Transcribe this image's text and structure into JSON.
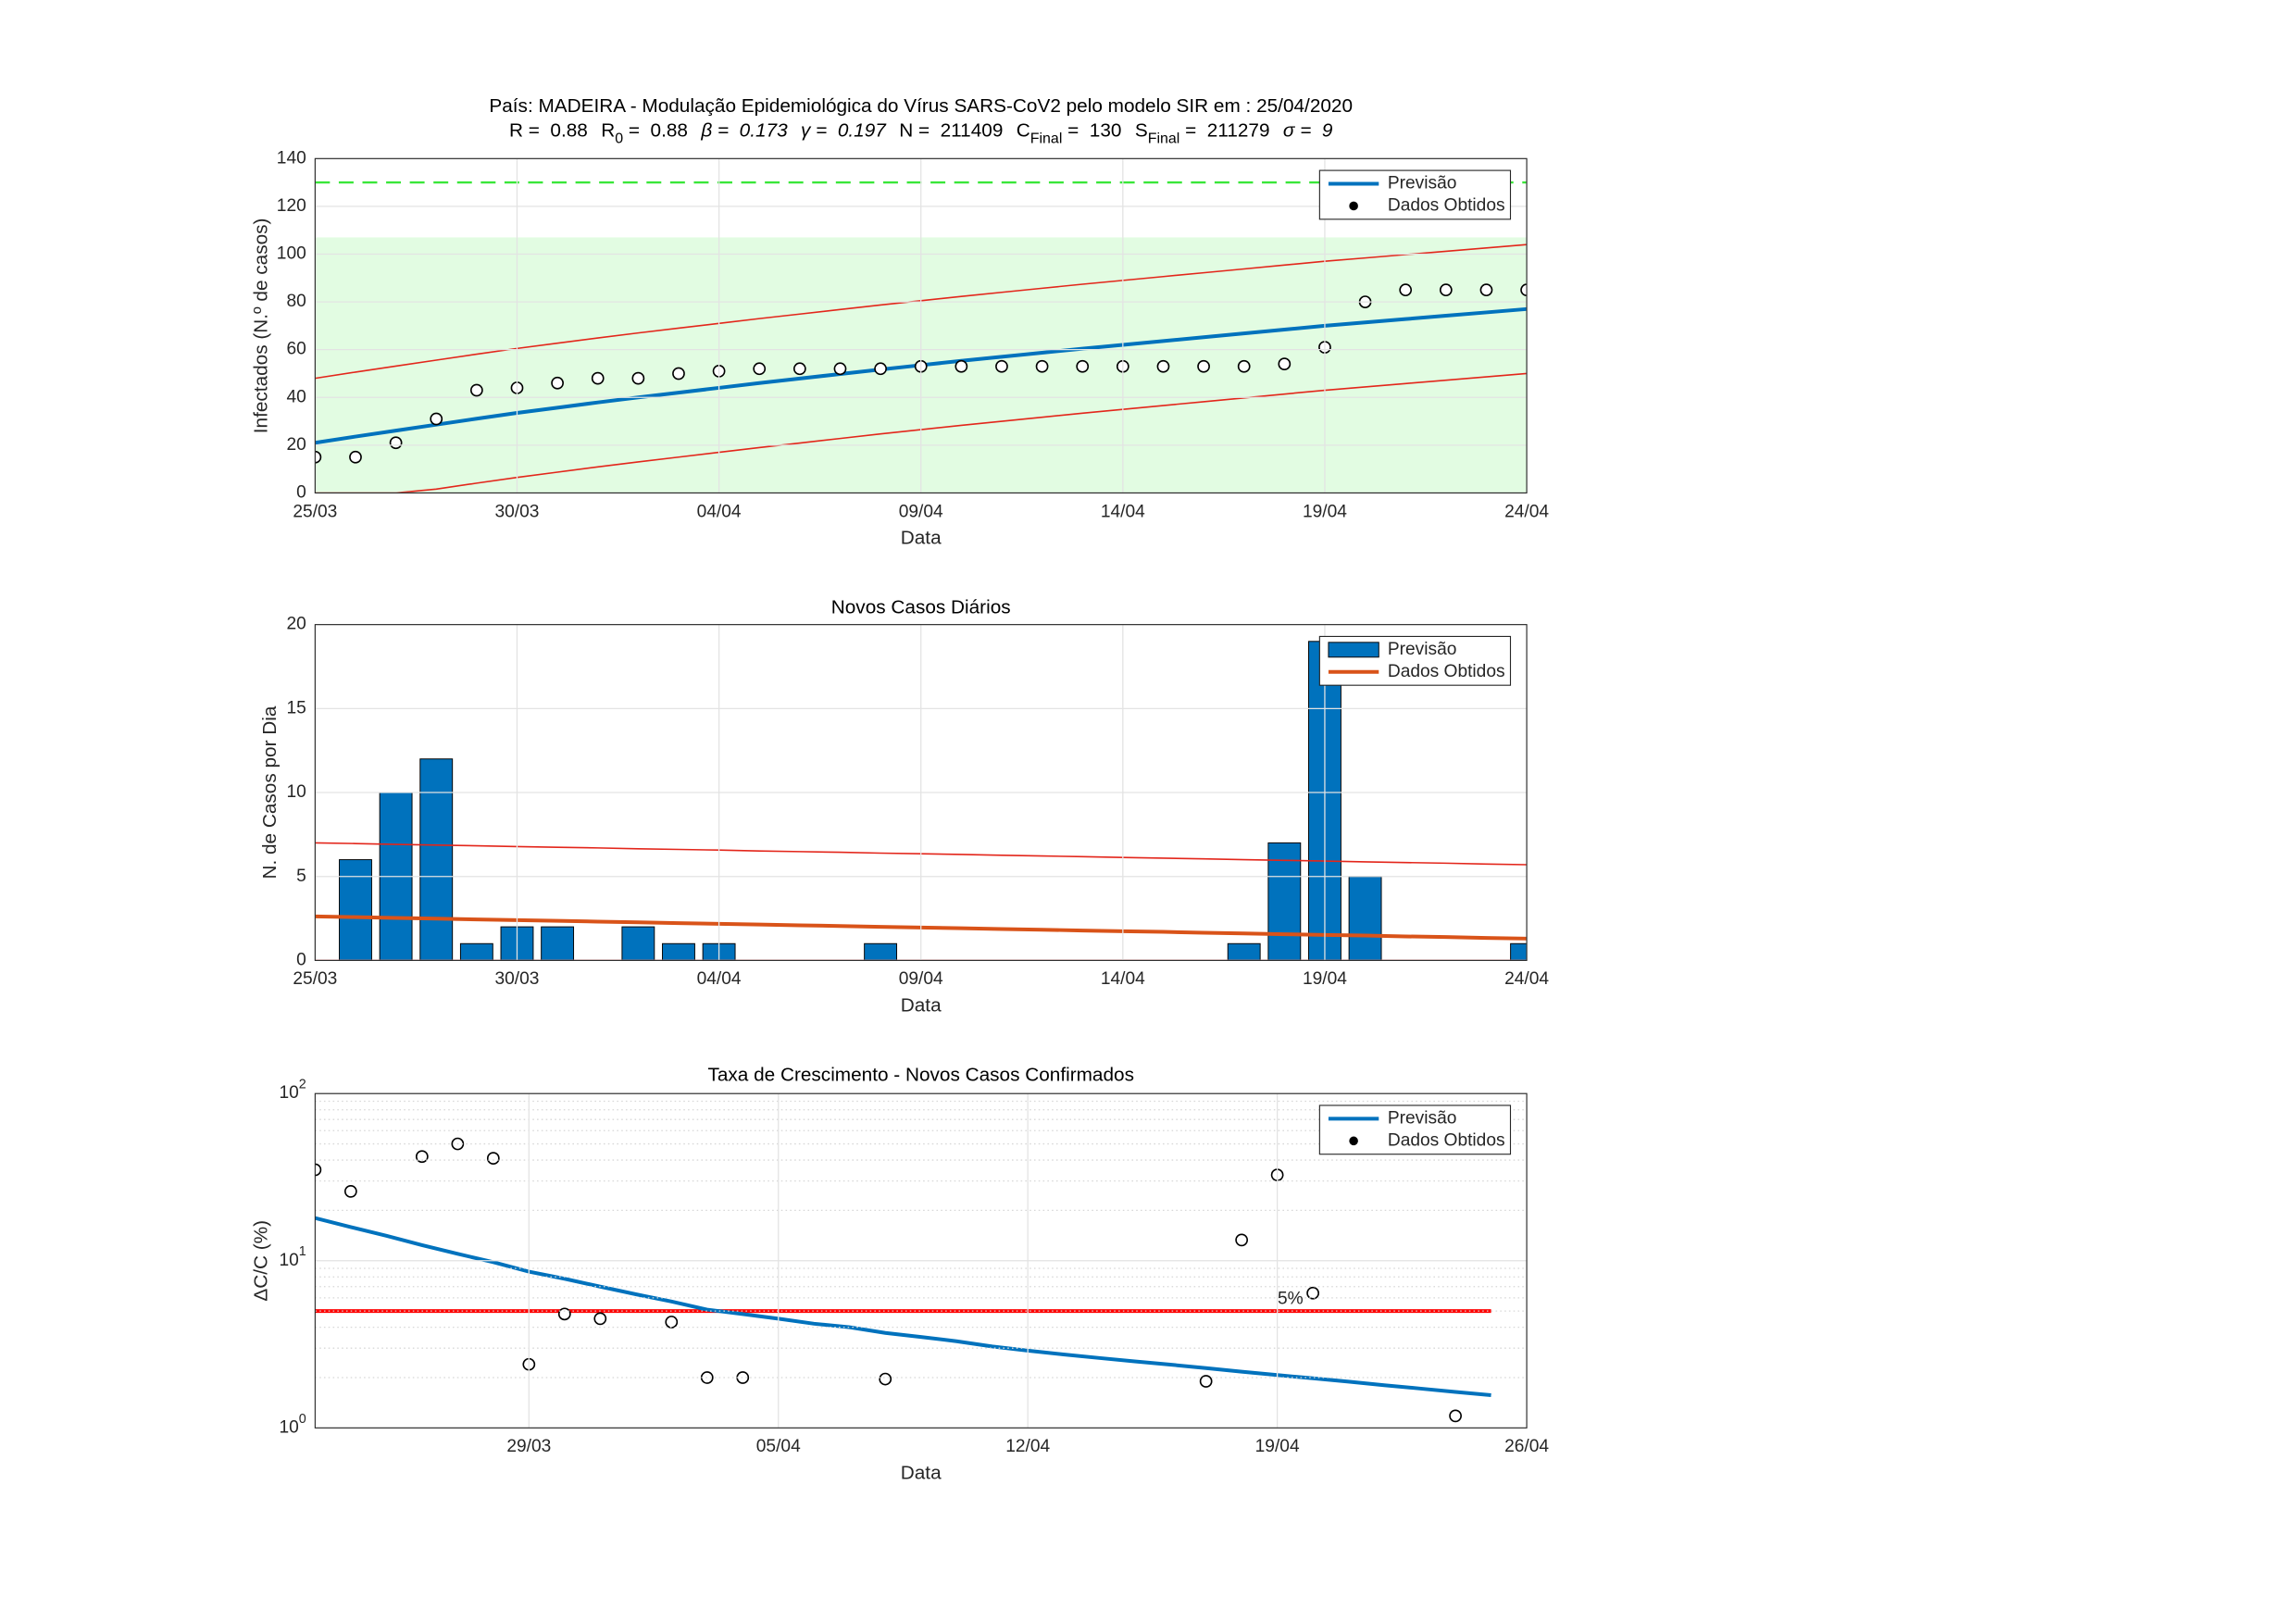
{
  "chart_data": [
    {
      "type": "line",
      "title": "País: MADEIRA - Modulação Epidemiológica do Vírus SARS-CoV2 pelo modelo SIR em : 25/04/2020",
      "subtitle": [
        {
          "text": "R =  0.88"
        },
        {
          "text": "R",
          "sub": "0",
          "rest": " =  0.88"
        },
        {
          "text": "β =  0.173"
        },
        {
          "text": "γ =  0.197"
        },
        {
          "text": "N =  211409"
        },
        {
          "text": "C",
          "sub": "Final",
          "rest": " =  130"
        },
        {
          "text": "S",
          "sub": "Final",
          "rest": " =  211279"
        },
        {
          "text": "σ =  9"
        }
      ],
      "x_label": "Data",
      "y_label": "Infectados (N.º de casos)",
      "x": [
        "25/03",
        "26/03",
        "27/03",
        "28/03",
        "29/03",
        "30/03",
        "31/03",
        "01/04",
        "02/04",
        "03/04",
        "04/04",
        "05/04",
        "06/04",
        "07/04",
        "08/04",
        "09/04",
        "10/04",
        "11/04",
        "12/04",
        "13/04",
        "14/04",
        "15/04",
        "16/04",
        "17/04",
        "18/04",
        "19/04",
        "20/04",
        "21/04",
        "22/04",
        "23/04",
        "24/04"
      ],
      "xticks": [
        "25/03",
        "30/03",
        "04/04",
        "09/04",
        "14/04",
        "19/04",
        "24/04"
      ],
      "ylim": [
        0,
        140
      ],
      "yticks": [
        0,
        20,
        40,
        60,
        80,
        100,
        120,
        140
      ],
      "grid": true,
      "shade": {
        "range": [
          0,
          107
        ],
        "color": "#e2fce2"
      },
      "hline": {
        "value": 130,
        "color": "#3ae63a",
        "style": "dashed"
      },
      "bounds": {
        "color": "#e3261b",
        "upper": [
          48,
          50.6,
          53.1,
          55.6,
          58.1,
          60.5,
          62.7,
          64.9,
          67,
          69,
          71,
          73,
          74.9,
          76.8,
          78.7,
          80.5,
          82.3,
          84,
          85.7,
          87.4,
          89,
          90.6,
          92.2,
          93.8,
          95.4,
          97,
          98.4,
          99.8,
          101.2,
          102.6,
          104
        ],
        "lower": [
          0,
          0,
          0,
          1.6,
          4.1,
          6.5,
          8.7,
          10.9,
          13,
          15,
          17,
          19,
          20.9,
          22.8,
          24.7,
          26.5,
          28.3,
          30,
          31.7,
          33.4,
          35,
          36.6,
          38.2,
          39.8,
          41.4,
          43,
          44.4,
          45.8,
          47.2,
          48.6,
          50
        ]
      },
      "series": [
        {
          "name": "Previsão",
          "type": "line",
          "color": "#0072bd",
          "values": [
            21,
            23.6,
            26.1,
            28.6,
            31.1,
            33.5,
            35.7,
            37.9,
            40,
            42,
            44,
            46,
            47.9,
            49.8,
            51.7,
            53.5,
            55.3,
            57,
            58.7,
            60.4,
            62,
            63.6,
            65.2,
            66.8,
            68.4,
            70,
            71.4,
            72.8,
            74.2,
            75.6,
            77
          ]
        },
        {
          "name": "Dados Obtidos",
          "type": "scatter",
          "color": "#000000",
          "values": [
            15,
            15,
            21,
            31,
            43,
            44,
            46,
            48,
            48,
            50,
            51,
            52,
            52,
            52,
            52,
            53,
            53,
            53,
            53,
            53,
            53,
            53,
            53,
            53,
            54,
            61,
            80,
            85,
            85,
            85,
            85
          ]
        }
      ]
    },
    {
      "type": "bar",
      "title": "Novos Casos Diários",
      "x_label": "Data",
      "y_label": "N. de Casos por Dia",
      "x": [
        "25/03",
        "26/03",
        "27/03",
        "28/03",
        "29/03",
        "30/03",
        "31/03",
        "01/04",
        "02/04",
        "03/04",
        "04/04",
        "05/04",
        "06/04",
        "07/04",
        "08/04",
        "09/04",
        "10/04",
        "11/04",
        "12/04",
        "13/04",
        "14/04",
        "15/04",
        "16/04",
        "17/04",
        "18/04",
        "19/04",
        "20/04",
        "21/04",
        "22/04",
        "23/04",
        "24/04"
      ],
      "xticks": [
        "25/03",
        "30/03",
        "04/04",
        "09/04",
        "14/04",
        "19/04",
        "24/04"
      ],
      "ylim": [
        0,
        20
      ],
      "yticks": [
        0,
        5,
        10,
        15,
        20
      ],
      "grid": true,
      "bounds": {
        "color": "#e3261b",
        "upper": [
          7.0,
          6.96,
          6.91,
          6.87,
          6.83,
          6.78,
          6.74,
          6.7,
          6.65,
          6.61,
          6.57,
          6.52,
          6.48,
          6.44,
          6.39,
          6.35,
          6.31,
          6.26,
          6.22,
          6.18,
          6.13,
          6.09,
          6.05,
          6.0,
          5.96,
          5.92,
          5.87,
          5.83,
          5.79,
          5.74,
          5.7
        ],
        "lower": [
          0,
          0,
          0,
          0,
          0,
          0,
          0,
          0,
          0,
          0,
          0,
          0,
          0,
          0,
          0,
          0,
          0,
          0,
          0,
          0,
          0,
          0,
          0,
          0,
          0,
          0,
          0,
          0,
          0,
          0,
          0
        ]
      },
      "series": [
        {
          "name": "Previsão",
          "type": "bar",
          "color": "#0072bd",
          "values": [
            0,
            6,
            10,
            12,
            1,
            2,
            2,
            0,
            2,
            1,
            1,
            0,
            0,
            0,
            1,
            0,
            0,
            0,
            0,
            0,
            0,
            0,
            0,
            1,
            7,
            19,
            5,
            0,
            0,
            0,
            1
          ]
        },
        {
          "name": "Dados Obtidos",
          "type": "line",
          "color": "#d95319",
          "values": [
            2.62,
            2.58,
            2.53,
            2.49,
            2.44,
            2.4,
            2.36,
            2.31,
            2.27,
            2.22,
            2.18,
            2.14,
            2.09,
            2.05,
            2.0,
            1.96,
            1.92,
            1.87,
            1.83,
            1.78,
            1.74,
            1.7,
            1.65,
            1.61,
            1.56,
            1.52,
            1.48,
            1.43,
            1.39,
            1.34,
            1.3
          ]
        }
      ]
    },
    {
      "type": "scatter",
      "title": "Taxa de Crescimento - Novos Casos Confirmados",
      "x_label": "Data",
      "y_label": "ΔC/C (%)",
      "log_y": true,
      "x": [
        "23/03",
        "24/03",
        "25/03",
        "26/03",
        "27/03",
        "28/03",
        "29/03",
        "30/03",
        "31/03",
        "01/04",
        "02/04",
        "03/04",
        "04/04",
        "05/04",
        "06/04",
        "07/04",
        "08/04",
        "09/04",
        "10/04",
        "11/04",
        "12/04",
        "13/04",
        "14/04",
        "15/04",
        "16/04",
        "17/04",
        "18/04",
        "19/04",
        "20/04",
        "21/04",
        "22/04",
        "23/04",
        "24/04",
        "25/04",
        "26/04"
      ],
      "xticks": [
        "29/03",
        "05/04",
        "12/04",
        "19/04",
        "26/04"
      ],
      "ylim": [
        1,
        100
      ],
      "yticks": [
        {
          "value": 1,
          "label": "10",
          "label_exp": "0"
        },
        {
          "value": 10,
          "label": "10",
          "label_exp": "1"
        },
        {
          "value": 100,
          "label": "10",
          "label_exp": "2"
        }
      ],
      "grid": true,
      "hline": {
        "value": 5,
        "label": "5%",
        "color": "#ff0000",
        "style": "solid"
      },
      "series": [
        {
          "name": "Previsão",
          "type": "line",
          "color": "#0072bd",
          "values": [
            18,
            15.9,
            14.1,
            12.4,
            11,
            9.8,
            8.6,
            7.8,
            7,
            6.3,
            5.7,
            5.1,
            4.8,
            4.5,
            4.2,
            4,
            3.7,
            3.5,
            3.3,
            3.07,
            2.9,
            2.75,
            2.62,
            2.5,
            2.39,
            2.28,
            2.17,
            2.07,
            1.98,
            1.89,
            1.8,
            1.72,
            1.64,
            1.57,
            null
          ]
        },
        {
          "name": "Dados Obtidos",
          "type": "scatter",
          "color": "#000000",
          "values": [
            35,
            26,
            null,
            42,
            50,
            41,
            2.4,
            4.8,
            4.5,
            null,
            4.3,
            2.0,
            2.0,
            null,
            null,
            null,
            1.96,
            null,
            null,
            null,
            null,
            null,
            null,
            null,
            null,
            1.9,
            13.3,
            32.6,
            6.4,
            null,
            null,
            null,
            1.18,
            null,
            null
          ]
        }
      ]
    }
  ]
}
